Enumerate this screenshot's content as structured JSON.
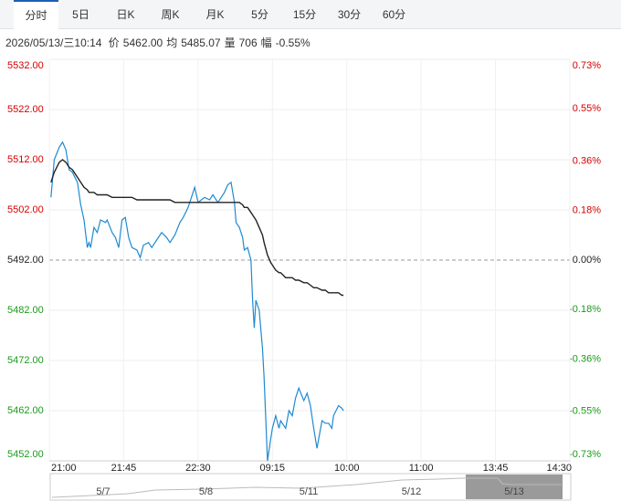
{
  "tabs": [
    "分时",
    "5日",
    "日K",
    "周K",
    "月K",
    "5分",
    "15分",
    "30分",
    "60分"
  ],
  "active_tab": 0,
  "info": {
    "datetime": "2026/05/13/三10:14",
    "fields": [
      {
        "label": "价",
        "value": "5462.00"
      },
      {
        "label": "均",
        "value": "5485.07"
      },
      {
        "label": "量",
        "value": "706"
      },
      {
        "label": "幅",
        "value": "-0.55%"
      }
    ]
  },
  "chart_data": {
    "type": "line",
    "x": [
      1,
      3,
      6,
      8,
      10,
      12,
      14,
      17,
      19,
      21,
      23,
      24,
      25,
      27,
      29,
      31,
      34,
      35,
      38,
      40,
      42,
      44,
      46,
      48,
      50,
      53,
      55,
      57,
      60,
      62,
      65,
      68,
      71,
      73,
      76,
      79,
      81,
      84,
      86,
      88,
      90,
      92,
      94,
      97,
      99,
      102,
      104,
      106,
      108,
      110,
      112,
      113,
      115,
      117,
      118,
      120,
      122,
      123,
      124,
      125,
      127,
      129,
      130,
      132,
      134,
      135,
      137,
      139,
      140,
      143,
      145,
      147,
      149,
      151,
      154,
      156,
      158,
      160,
      162,
      165,
      167,
      169,
      171,
      172,
      175,
      177,
      178
    ],
    "series": [
      {
        "color": "#1e8ad2",
        "values": [
          5504.5,
          5512,
          5514.5,
          5515.5,
          5514,
          5510,
          5509.5,
          5507.5,
          5503,
          5500,
          5494.5,
          5495.5,
          5494.5,
          5498.5,
          5497.5,
          5500,
          5499.5,
          5500,
          5497.5,
          5496.5,
          5494.5,
          5500,
          5500.5,
          5496.5,
          5494.5,
          5494,
          5492.5,
          5495,
          5495.5,
          5494.5,
          5496,
          5497.5,
          5496.5,
          5495.5,
          5497,
          5499.5,
          5500.5,
          5502.5,
          5504.5,
          5506.5,
          5503.5,
          5504,
          5504.5,
          5504,
          5505,
          5503.5,
          5504.5,
          5505.5,
          5507,
          5507.5,
          5503.5,
          5499.5,
          5498.5,
          5496.5,
          5494,
          5494.5,
          5492,
          5484,
          5478.5,
          5484,
          5482,
          5474.5,
          5468.5,
          5452,
          5456.5,
          5458.5,
          5461,
          5458.5,
          5460,
          5458.5,
          5462,
          5461,
          5464.5,
          5466.5,
          5464,
          5465.5,
          5463,
          5458.5,
          5454.5,
          5460,
          5459.5,
          5459.5,
          5458.5,
          5461,
          5463,
          5462.5,
          5462
        ]
      },
      {
        "color": "#222222",
        "values": [
          5507.5,
          5509.5,
          5511.5,
          5512,
          5511.5,
          5510.5,
          5510,
          5508.5,
          5507.5,
          5506.5,
          5506,
          5505.5,
          5505.5,
          5505.5,
          5505,
          5505,
          5505,
          5505,
          5504.5,
          5504.5,
          5504.5,
          5504.5,
          5504.5,
          5504.5,
          5504.5,
          5504,
          5504,
          5504,
          5504,
          5504,
          5504,
          5504,
          5504,
          5504,
          5503.5,
          5503.5,
          5503.5,
          5503.5,
          5503.5,
          5503.5,
          5503.5,
          5503.5,
          5503.5,
          5503.5,
          5503.5,
          5503.5,
          5503.5,
          5503.5,
          5503.5,
          5503.5,
          5503.5,
          5503.5,
          5503.5,
          5503,
          5502.5,
          5502.5,
          5501.5,
          5501,
          5500.5,
          5500,
          5498.5,
          5497,
          5495.5,
          5493,
          5491.5,
          5491,
          5490,
          5489.5,
          5489.5,
          5488.5,
          5488.5,
          5488.5,
          5488,
          5488,
          5487.5,
          5487.5,
          5487,
          5486.5,
          5486.5,
          5486,
          5486,
          5485.5,
          5485.5,
          5485.5,
          5485.5,
          5485,
          5485
        ]
      }
    ],
    "xlim": [
      0,
      315
    ],
    "xticks": [
      {
        "value": 0,
        "label": "21:00"
      },
      {
        "value": 45,
        "label": "21:45"
      },
      {
        "value": 90,
        "label": "22:30"
      },
      {
        "value": 135,
        "label": "09:15"
      },
      {
        "value": 180,
        "label": "10:00"
      },
      {
        "value": 225,
        "label": "11:00"
      },
      {
        "value": 270,
        "label": "13:45"
      },
      {
        "value": 315,
        "label": "14:30"
      }
    ],
    "ylim": [
      5452,
      5532
    ],
    "yticks": [
      {
        "value": 5532,
        "label": "5532.00"
      },
      {
        "value": 5522,
        "label": "5522.00"
      },
      {
        "value": 5512,
        "label": "5512.00"
      },
      {
        "value": 5502,
        "label": "5502.00"
      },
      {
        "value": 5492,
        "label": "5492.00"
      },
      {
        "value": 5482,
        "label": "5482.00"
      },
      {
        "value": 5472,
        "label": "5472.00"
      },
      {
        "value": 5462,
        "label": "5462.00"
      },
      {
        "value": 5452,
        "label": "5452.00"
      }
    ],
    "y2lim": [
      -0.73,
      0.73
    ],
    "y2ticks": [
      {
        "value": 0.73,
        "label": "0.73%"
      },
      {
        "value": 0.55,
        "label": "0.55%"
      },
      {
        "value": 0.36,
        "label": "0.36%"
      },
      {
        "value": 0.18,
        "label": "0.18%"
      },
      {
        "value": 0,
        "label": "0.00%"
      },
      {
        "value": -0.18,
        "label": "-0.18%"
      },
      {
        "value": -0.36,
        "label": "-0.36%"
      },
      {
        "value": -0.55,
        "label": "-0.55%"
      },
      {
        "value": -0.73,
        "label": "-0.73%"
      }
    ],
    "baseline": 5492,
    "grid": true
  },
  "navigator": {
    "dates": [
      "5/7",
      "5/8",
      "5/11",
      "5/12",
      "5/13"
    ]
  }
}
